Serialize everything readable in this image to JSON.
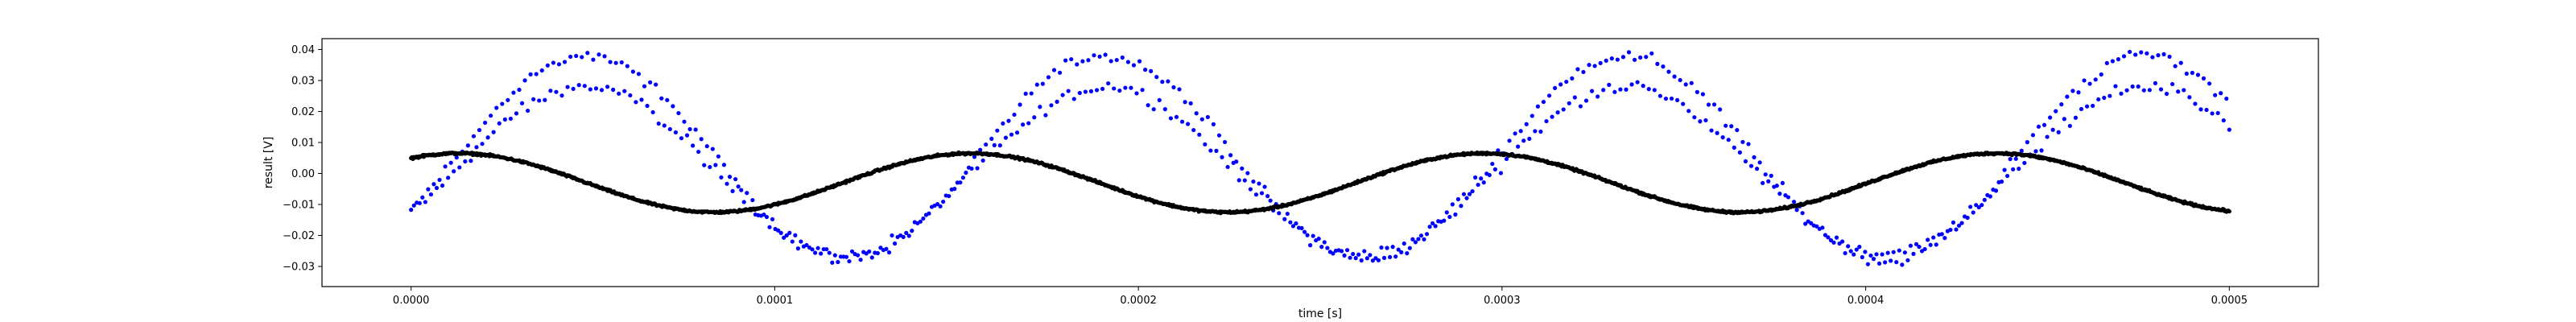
{
  "chart_data": {
    "type": "scatter",
    "title": "",
    "xlabel": "time [s]",
    "ylabel": "result [V]",
    "xlim": [
      -2.45e-05,
      0.0005245
    ],
    "ylim": [
      -0.0365,
      0.0435
    ],
    "x_ticks": [
      0,
      0.0001,
      0.0002,
      0.0003,
      0.0004,
      0.0005
    ],
    "x_tick_labels": [
      "0.0000",
      "0.0001",
      "0.0002",
      "0.0003",
      "0.0004",
      "0.0005"
    ],
    "y_ticks": [
      -0.03,
      -0.02,
      -0.01,
      0.0,
      0.01,
      0.02,
      0.03,
      0.04
    ],
    "y_tick_labels": [
      "−0.03",
      "−0.02",
      "−0.01",
      "0.00",
      "0.01",
      "0.02",
      "0.03",
      "0.04"
    ],
    "grid": false,
    "legend": "none",
    "series": [
      {
        "color": "#0000ff",
        "marker": "dot",
        "sampling": {
          "x_start": 0,
          "x_end": 0.0005,
          "count": 640
        },
        "model": {
          "description": "two interleaved sinusoids with noise, read from plot",
          "offset": 0.005,
          "amplitude_upper": 0.033,
          "amplitude_lower": 0.027,
          "period": 0.000143,
          "phase_peak_time": 4.8e-05,
          "noise": 0.0025
        }
      },
      {
        "color": "#000000",
        "marker": "dot",
        "sampling": {
          "x_start": 0,
          "x_end": 0.0005,
          "count": 2000
        },
        "model": {
          "description": "sinusoid with small noise, read from plot",
          "offset": -0.003,
          "amplitude": 0.0095,
          "period": 0.000141,
          "phase_peak_time": 1.3e-05,
          "noise": 0.0004
        }
      }
    ]
  }
}
